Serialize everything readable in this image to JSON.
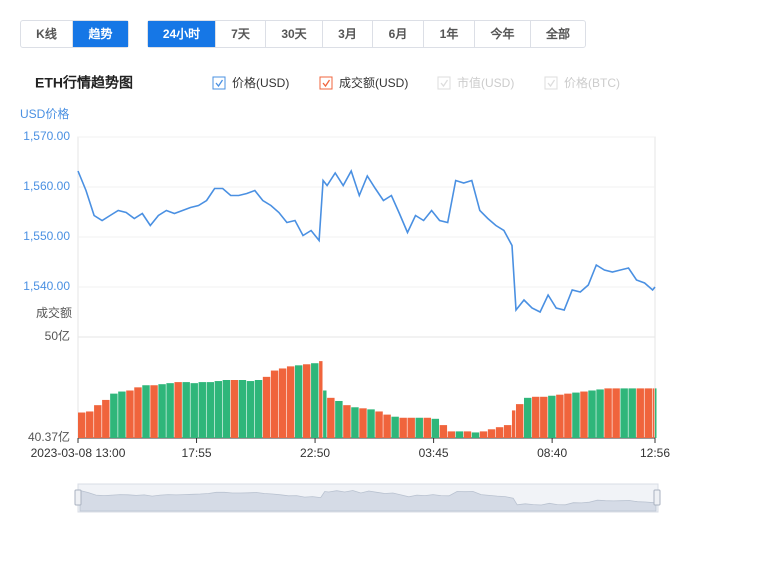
{
  "toolbar": {
    "views": [
      "K线",
      "趋势"
    ],
    "active_view": 1,
    "ranges": [
      "24小时",
      "7天",
      "30天",
      "3月",
      "6月",
      "1年",
      "今年",
      "全部"
    ],
    "active_range": 0
  },
  "chart_data": {
    "type": "line",
    "title": "ETH行情趋势图",
    "y_label": "USD价格",
    "y2_label": "成交额",
    "x": [
      0,
      20,
      40,
      60,
      80,
      100,
      120,
      140,
      160,
      180,
      200,
      220,
      240,
      260,
      280,
      300,
      320,
      340,
      360,
      380,
      400,
      420,
      440,
      460,
      480,
      500,
      520,
      540,
      560,
      580,
      600,
      610,
      620,
      640,
      660,
      680,
      700,
      720,
      740,
      760,
      780,
      800,
      820,
      840,
      860,
      880,
      900,
      920,
      940,
      960,
      980,
      1000,
      1020,
      1040,
      1060,
      1080,
      1090,
      1110,
      1130,
      1150,
      1170,
      1190,
      1210,
      1230,
      1250,
      1270,
      1290,
      1310,
      1330,
      1350,
      1370,
      1390,
      1410,
      1430,
      1436
    ],
    "xlim": [
      0,
      1436
    ],
    "xticks": [
      {
        "value": 0,
        "label": "2023-03-08 13:00"
      },
      {
        "value": 295,
        "label": "17:55"
      },
      {
        "value": 590,
        "label": "22:50"
      },
      {
        "value": 885,
        "label": "03:45"
      },
      {
        "value": 1180,
        "label": "08:40"
      },
      {
        "value": 1436,
        "label": "12:56"
      }
    ],
    "ylim": [
      1535,
      1570
    ],
    "yticks": [
      {
        "value": 1570,
        "label": "1,570.00"
      },
      {
        "value": 1560,
        "label": "1,560.00"
      },
      {
        "value": 1550,
        "label": "1,550.00"
      },
      {
        "value": 1540,
        "label": "1,540.00"
      }
    ],
    "y2lim": [
      40.37,
      50
    ],
    "y2ticks": [
      {
        "value": 50,
        "label": "50亿"
      },
      {
        "value": 40.37,
        "label": "40.37亿"
      }
    ],
    "grid": true,
    "series": [
      {
        "name": "价格(USD)",
        "type": "line",
        "color": "#4a90e2",
        "values": [
          1563.2,
          1559.3,
          1554.3,
          1553.3,
          1554.3,
          1555.3,
          1554.9,
          1553.7,
          1554.7,
          1552.3,
          1554.3,
          1555.3,
          1554.7,
          1555.3,
          1555.9,
          1556.3,
          1557.3,
          1559.7,
          1559.7,
          1558.3,
          1558.3,
          1558.7,
          1559.3,
          1557.3,
          1556.3,
          1554.9,
          1552.9,
          1553.3,
          1550.3,
          1551.3,
          1549.3,
          1561.3,
          1560.3,
          1562.8,
          1560.3,
          1563.2,
          1558.3,
          1562.2,
          1559.7,
          1557.3,
          1558.3,
          1554.7,
          1550.9,
          1554.3,
          1553.3,
          1555.3,
          1553.3,
          1552.9,
          1561.3,
          1560.8,
          1561.3,
          1555.3,
          1553.7,
          1552.3,
          1551.3,
          1548.3,
          1535.4,
          1537.4,
          1535.8,
          1535.0,
          1538.4,
          1535.8,
          1535.4,
          1539.4,
          1539.0,
          1540.4,
          1544.4,
          1543.4,
          1543.0,
          1543.4,
          1543.8,
          1541.4,
          1540.8,
          1539.4,
          1540.0
        ]
      },
      {
        "name": "成交额(USD)",
        "type": "bar",
        "axis": "y2",
        "color": "#f0643c",
        "up_color": "#2fb67a",
        "down_color": "#f0643c",
        "values": [
          42.8,
          42.9,
          43.5,
          44.0,
          44.6,
          44.8,
          44.9,
          45.2,
          45.4,
          45.4,
          45.5,
          45.6,
          45.7,
          45.7,
          45.6,
          45.7,
          45.7,
          45.8,
          45.9,
          45.9,
          45.9,
          45.8,
          45.9,
          46.2,
          46.8,
          47.0,
          47.2,
          47.3,
          47.4,
          47.5,
          47.7,
          44.9,
          44.2,
          43.9,
          43.5,
          43.3,
          43.2,
          43.1,
          42.9,
          42.6,
          42.4,
          42.3,
          42.3,
          42.3,
          42.3,
          42.2,
          41.6,
          41.0,
          41.0,
          41.0,
          40.9,
          41.0,
          41.2,
          41.4,
          41.6,
          43.0,
          43.6,
          44.2,
          44.3,
          44.3,
          44.4,
          44.5,
          44.6,
          44.7,
          44.8,
          44.9,
          45.0,
          45.1,
          45.1,
          45.1,
          45.1,
          45.1,
          45.1,
          45.1,
          45.1
        ]
      }
    ],
    "legend_inactive": [
      "市值(USD)",
      "价格(BTC)"
    ]
  }
}
